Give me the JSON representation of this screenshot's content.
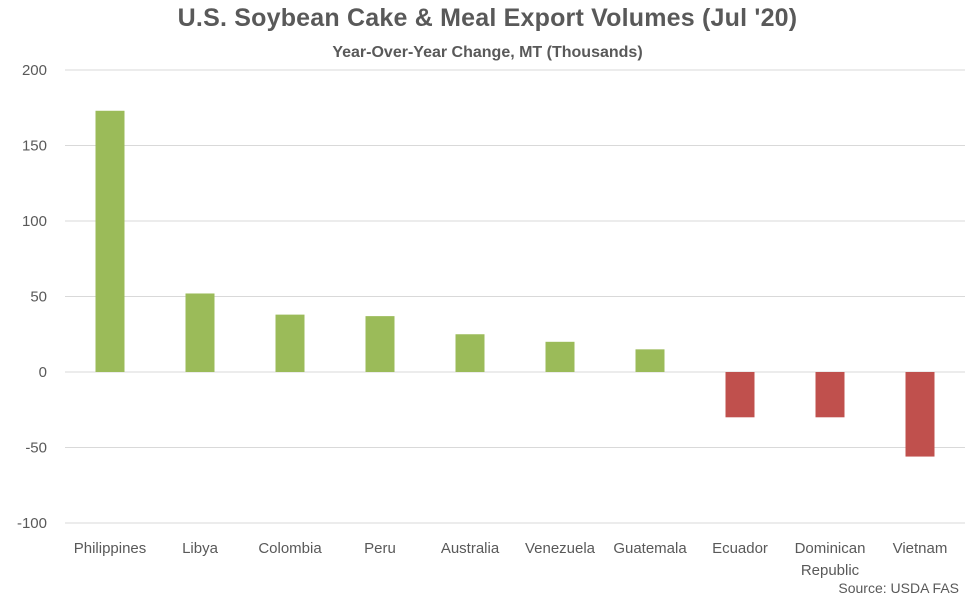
{
  "chart_data": {
    "type": "bar",
    "title": "U.S. Soybean Cake & Meal Export Volumes (Jul '20)",
    "subtitle": "Year-Over-Year Change, MT (Thousands)",
    "categories": [
      [
        "Philippines"
      ],
      [
        "Libya"
      ],
      [
        "Colombia"
      ],
      [
        "Peru"
      ],
      [
        "Australia"
      ],
      [
        "Venezuela"
      ],
      [
        "Guatemala"
      ],
      [
        "Ecuador"
      ],
      [
        "Dominican",
        "Republic"
      ],
      [
        "Vietnam"
      ]
    ],
    "values": [
      173,
      52,
      38,
      37,
      25,
      20,
      15,
      -30,
      -30,
      -56
    ],
    "ylim": [
      -100,
      200
    ],
    "yticks": [
      200,
      150,
      100,
      50,
      0,
      -50,
      -100
    ],
    "grid": true,
    "legend": "none",
    "colors": {
      "positive": "#9BBB59",
      "negative": "#C0504D",
      "grid": "#D9D9D9",
      "text": "#595959"
    },
    "source": "Source: USDA FAS"
  }
}
